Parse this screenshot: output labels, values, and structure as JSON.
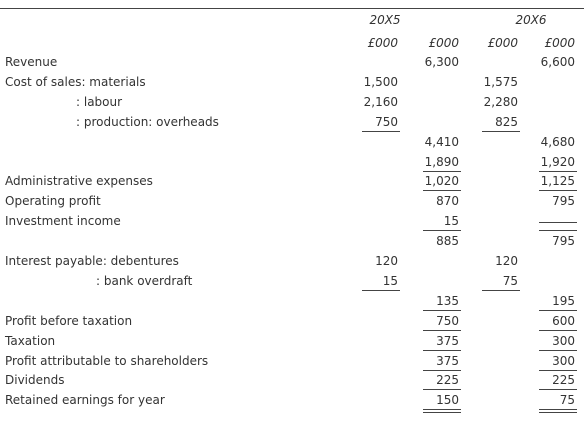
{
  "table": {
    "years": [
      "20X5",
      "20X6"
    ],
    "units": [
      "£000",
      "£000",
      "£000",
      "£000"
    ],
    "rows": [
      {
        "label": "Revenue",
        "cells": [
          null,
          "6,300",
          null,
          "6,600"
        ]
      },
      {
        "label": "Cost of sales: materials",
        "cells": [
          "1,500",
          null,
          "1,575",
          null
        ]
      },
      {
        "label": ": labour",
        "cells": [
          "2,160",
          null,
          "2,280",
          null
        ]
      },
      {
        "label": ": production: overheads",
        "cells": [
          "750",
          null,
          "825",
          null
        ]
      },
      {
        "label": null,
        "cells": [
          null,
          "4,410",
          null,
          "4,680"
        ]
      },
      {
        "label": null,
        "cells": [
          null,
          "1,890",
          null,
          "1,920"
        ]
      },
      {
        "label": "Administrative expenses",
        "cells": [
          null,
          "1,020",
          null,
          "1,125"
        ]
      },
      {
        "label": "Operating profit",
        "cells": [
          null,
          "870",
          null,
          "795"
        ]
      },
      {
        "label": "Investment income",
        "cells": [
          null,
          "15",
          null,
          null
        ]
      },
      {
        "label": null,
        "cells": [
          null,
          "885",
          null,
          "795"
        ]
      },
      {
        "label": "Interest payable: debentures",
        "cells": [
          "120",
          null,
          "120",
          null
        ]
      },
      {
        "label": ": bank overdraft",
        "cells": [
          "15",
          null,
          "75",
          null
        ]
      },
      {
        "label": null,
        "cells": [
          null,
          "135",
          null,
          "195"
        ]
      },
      {
        "label": "Profit before taxation",
        "cells": [
          null,
          "750",
          null,
          "600"
        ]
      },
      {
        "label": "Taxation",
        "cells": [
          null,
          "375",
          null,
          "300"
        ]
      },
      {
        "label": "Profit attributable to shareholders",
        "cells": [
          null,
          "375",
          null,
          "300"
        ]
      },
      {
        "label": "Dividends",
        "cells": [
          null,
          "225",
          null,
          "225"
        ]
      },
      {
        "label": "Retained earnings for year",
        "cells": [
          null,
          "150",
          null,
          "75"
        ]
      }
    ]
  }
}
